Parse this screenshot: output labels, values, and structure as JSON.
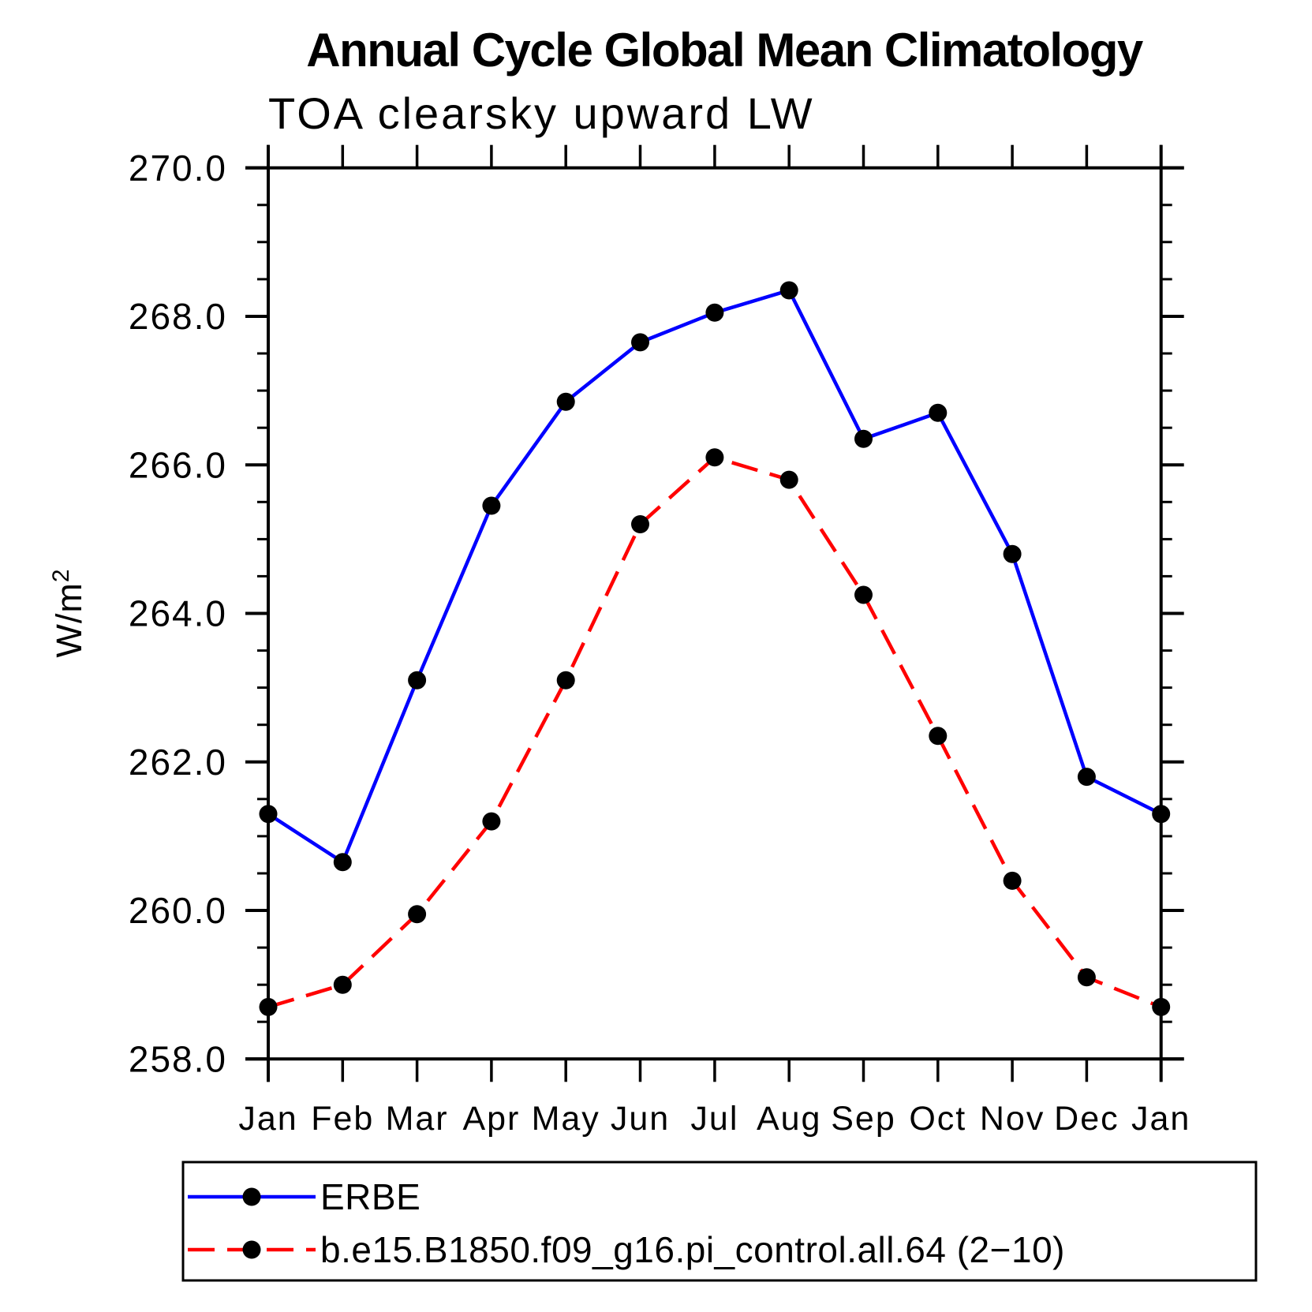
{
  "title": "Annual Cycle Global Mean Climatology",
  "subtitle": "TOA clearsky upward LW",
  "background_color": "#ffffff",
  "axis_color": "#000000",
  "chart_data": {
    "type": "line",
    "categories": [
      "Jan",
      "Feb",
      "Mar",
      "Apr",
      "May",
      "Jun",
      "Jul",
      "Aug",
      "Sep",
      "Oct",
      "Nov",
      "Dec",
      "Jan"
    ],
    "xlabel": "",
    "ylabel_base": "W/m",
    "ylabel_exponent": "2",
    "ylim": [
      258.0,
      270.0
    ],
    "ytick_major_labels": [
      "258.0",
      "260.0",
      "262.0",
      "264.0",
      "266.0",
      "268.0",
      "270.0"
    ],
    "ytick_major_step": 2.0,
    "ytick_minor_step": 0.5,
    "grid": false,
    "legend_position": "bottom-left",
    "legend_border_color": "#000000",
    "marker": "circle",
    "marker_color": "#000000",
    "series": [
      {
        "name": "ERBE",
        "color": "#0000ff",
        "line_style": "solid",
        "values": [
          261.3,
          260.65,
          263.1,
          265.45,
          266.85,
          267.65,
          268.05,
          268.35,
          266.35,
          266.7,
          264.8,
          261.8,
          261.3
        ]
      },
      {
        "name": "b.e15.B1850.f09_g16.pi_control.all.64 (2−10)",
        "color": "#ff0000",
        "line_style": "dashed",
        "values": [
          258.7,
          259.0,
          259.95,
          261.2,
          263.1,
          265.2,
          266.1,
          265.8,
          264.25,
          262.35,
          260.4,
          259.1,
          258.7
        ]
      }
    ]
  }
}
